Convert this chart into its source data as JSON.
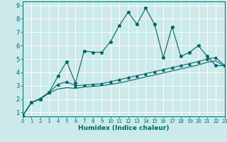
{
  "xlabel": "Humidex (Indice chaleur)",
  "bg_color": "#cceaea",
  "line_color": "#006666",
  "grid_color": "#ffffff",
  "xlim": [
    0,
    23
  ],
  "ylim": [
    0.7,
    9.3
  ],
  "xticks": [
    0,
    1,
    2,
    3,
    4,
    5,
    6,
    7,
    8,
    9,
    10,
    11,
    12,
    13,
    14,
    15,
    16,
    17,
    18,
    19,
    20,
    21,
    22,
    23
  ],
  "yticks": [
    1,
    2,
    3,
    4,
    5,
    6,
    7,
    8,
    9
  ],
  "line1_x": [
    0,
    1,
    2,
    3,
    4,
    5,
    6,
    7,
    8,
    9,
    10,
    11,
    12,
    13,
    14,
    15,
    16,
    17,
    18,
    19,
    20,
    21,
    22,
    23
  ],
  "line1_y": [
    0.75,
    1.75,
    2.0,
    2.5,
    3.7,
    4.8,
    3.2,
    5.6,
    5.5,
    5.5,
    6.3,
    7.5,
    8.5,
    7.6,
    8.8,
    7.6,
    5.1,
    7.4,
    5.2,
    5.5,
    6.0,
    5.2,
    4.5,
    4.5
  ],
  "line2_x": [
    0,
    1,
    2,
    3,
    4,
    5,
    6,
    7,
    8,
    9,
    10,
    11,
    12,
    13,
    14,
    15,
    16,
    17,
    18,
    19,
    20,
    21,
    22,
    23
  ],
  "line2_y": [
    0.75,
    1.75,
    2.05,
    2.5,
    3.1,
    3.3,
    3.0,
    3.05,
    3.1,
    3.15,
    3.3,
    3.45,
    3.6,
    3.75,
    3.9,
    4.05,
    4.2,
    4.35,
    4.5,
    4.65,
    4.8,
    5.0,
    5.1,
    4.5
  ],
  "line3_x": [
    0,
    1,
    2,
    3,
    4,
    5,
    6,
    7,
    8,
    9,
    10,
    11,
    12,
    13,
    14,
    15,
    16,
    17,
    18,
    19,
    20,
    21,
    22,
    23
  ],
  "line3_y": [
    0.75,
    1.75,
    2.0,
    2.45,
    2.75,
    2.85,
    2.8,
    2.9,
    2.95,
    3.0,
    3.1,
    3.2,
    3.35,
    3.5,
    3.65,
    3.8,
    3.95,
    4.1,
    4.25,
    4.4,
    4.55,
    4.75,
    4.85,
    4.45
  ]
}
